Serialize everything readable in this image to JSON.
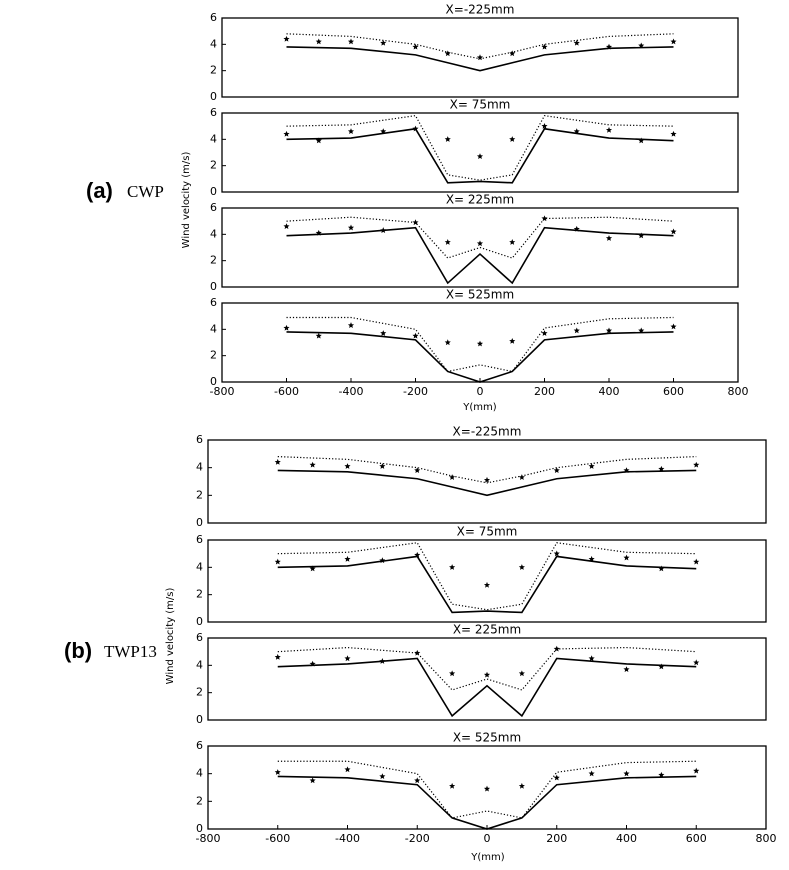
{
  "panels": [
    {
      "label": "(a)",
      "caption": "CWP",
      "ylabel": "Wind velocity (m/s)",
      "xlabel": "Y(mm)"
    },
    {
      "label": "(b)",
      "caption": "TWP13",
      "ylabel": "Wind velocity (m/s)",
      "xlabel": "Y(mm)"
    }
  ],
  "chart_data": [
    {
      "type": "line",
      "title": "X=-225mm",
      "xlim": [
        -800,
        800
      ],
      "ylim": [
        0,
        6
      ],
      "yticks": [
        0,
        2,
        4,
        6
      ],
      "color": "#000000",
      "series": [
        {
          "line": "solid",
          "x": [
            -600,
            -400,
            -200,
            -100,
            0,
            100,
            200,
            400,
            600
          ],
          "values": [
            3.8,
            3.7,
            3.2,
            2.6,
            2.0,
            2.6,
            3.2,
            3.7,
            3.8
          ]
        },
        {
          "line": "dotted",
          "x": [
            -600,
            -400,
            -200,
            -100,
            0,
            100,
            200,
            400,
            600
          ],
          "values": [
            4.8,
            4.6,
            4.0,
            3.4,
            2.9,
            3.4,
            4.0,
            4.6,
            4.8
          ]
        },
        {
          "line": "none",
          "marker": "star",
          "x": [
            -600,
            -500,
            -400,
            -300,
            -200,
            -100,
            0,
            100,
            200,
            300,
            400,
            500,
            600
          ],
          "values": [
            4.4,
            4.2,
            4.2,
            4.1,
            3.8,
            3.3,
            3.0,
            3.3,
            3.8,
            4.1,
            3.8,
            3.9,
            4.2
          ]
        }
      ]
    },
    {
      "type": "line",
      "title": "X=  75mm",
      "xlim": [
        -800,
        800
      ],
      "ylim": [
        0,
        6
      ],
      "yticks": [
        0,
        2,
        4,
        6
      ],
      "color": "#000000",
      "series": [
        {
          "line": "solid",
          "x": [
            -600,
            -400,
            -200,
            -100,
            0,
            100,
            200,
            400,
            600
          ],
          "values": [
            4.0,
            4.1,
            4.8,
            0.7,
            0.8,
            0.7,
            4.8,
            4.1,
            3.9
          ]
        },
        {
          "line": "dotted",
          "x": [
            -600,
            -400,
            -200,
            -100,
            0,
            100,
            200,
            400,
            600
          ],
          "values": [
            5.0,
            5.1,
            5.8,
            1.3,
            0.9,
            1.3,
            5.8,
            5.1,
            5.0
          ]
        },
        {
          "line": "none",
          "marker": "star",
          "x": [
            -600,
            -500,
            -400,
            -300,
            -200,
            -100,
            0,
            100,
            200,
            300,
            400,
            500,
            600
          ],
          "values": [
            4.4,
            3.9,
            4.6,
            4.6,
            4.8,
            4.0,
            2.7,
            4.0,
            5.0,
            4.6,
            4.7,
            3.9,
            4.4
          ]
        }
      ]
    },
    {
      "type": "line",
      "title": "X= 225mm",
      "xlim": [
        -800,
        800
      ],
      "ylim": [
        0,
        6
      ],
      "yticks": [
        0,
        2,
        4,
        6
      ],
      "color": "#000000",
      "series": [
        {
          "line": "solid",
          "x": [
            -600,
            -400,
            -200,
            -100,
            0,
            100,
            200,
            400,
            600
          ],
          "values": [
            3.9,
            4.1,
            4.5,
            0.3,
            2.5,
            0.3,
            4.5,
            4.1,
            3.9
          ]
        },
        {
          "line": "dotted",
          "x": [
            -600,
            -400,
            -200,
            -100,
            0,
            100,
            200,
            400,
            600
          ],
          "values": [
            5.0,
            5.3,
            4.9,
            2.2,
            3.0,
            2.2,
            5.2,
            5.3,
            5.0
          ]
        },
        {
          "line": "none",
          "marker": "star",
          "x": [
            -600,
            -500,
            -400,
            -300,
            -200,
            -100,
            0,
            100,
            200,
            300,
            400,
            500,
            600
          ],
          "values": [
            4.6,
            4.1,
            4.5,
            4.3,
            4.9,
            3.4,
            3.3,
            3.4,
            5.2,
            4.4,
            3.7,
            3.9,
            4.2
          ]
        }
      ]
    },
    {
      "type": "line",
      "title": "X= 525mm",
      "xlim": [
        -800,
        800
      ],
      "ylim": [
        0,
        6
      ],
      "yticks": [
        0,
        2,
        4,
        6
      ],
      "xticks": [
        -800,
        -600,
        -400,
        -200,
        0,
        200,
        400,
        600,
        800
      ],
      "color": "#000000",
      "series": [
        {
          "line": "solid",
          "x": [
            -600,
            -400,
            -200,
            -100,
            0,
            100,
            200,
            400,
            600
          ],
          "values": [
            3.8,
            3.7,
            3.2,
            0.8,
            0.0,
            0.8,
            3.2,
            3.7,
            3.8
          ]
        },
        {
          "line": "dotted",
          "x": [
            -600,
            -400,
            -200,
            -100,
            0,
            100,
            200,
            400,
            600
          ],
          "values": [
            4.9,
            4.9,
            4.0,
            0.8,
            1.3,
            0.8,
            4.1,
            4.8,
            4.9
          ]
        },
        {
          "line": "none",
          "marker": "star",
          "x": [
            -600,
            -500,
            -400,
            -300,
            -200,
            -100,
            0,
            100,
            200,
            300,
            400,
            500,
            600
          ],
          "values": [
            4.1,
            3.5,
            4.3,
            3.7,
            3.5,
            3.0,
            2.9,
            3.1,
            3.7,
            3.9,
            3.9,
            3.9,
            4.2
          ]
        }
      ]
    },
    {
      "type": "line",
      "title": "X=-225mm",
      "xlim": [
        -800,
        800
      ],
      "ylim": [
        0,
        6
      ],
      "yticks": [
        0,
        2,
        4,
        6
      ],
      "color": "#000000",
      "series": [
        {
          "line": "solid",
          "x": [
            -600,
            -400,
            -200,
            -100,
            0,
            100,
            200,
            400,
            600
          ],
          "values": [
            3.8,
            3.7,
            3.2,
            2.6,
            2.0,
            2.6,
            3.2,
            3.7,
            3.8
          ]
        },
        {
          "line": "dotted",
          "x": [
            -600,
            -400,
            -200,
            -100,
            0,
            100,
            200,
            400,
            600
          ],
          "values": [
            4.8,
            4.6,
            4.0,
            3.4,
            2.9,
            3.4,
            4.0,
            4.6,
            4.8
          ]
        },
        {
          "line": "none",
          "marker": "star",
          "x": [
            -600,
            -500,
            -400,
            -300,
            -200,
            -100,
            0,
            100,
            200,
            300,
            400,
            500,
            600
          ],
          "values": [
            4.4,
            4.2,
            4.1,
            4.1,
            3.8,
            3.3,
            3.1,
            3.3,
            3.8,
            4.1,
            3.8,
            3.9,
            4.2
          ]
        }
      ]
    },
    {
      "type": "line",
      "title": "X=  75mm",
      "xlim": [
        -800,
        800
      ],
      "ylim": [
        0,
        6
      ],
      "yticks": [
        0,
        2,
        4,
        6
      ],
      "color": "#000000",
      "series": [
        {
          "line": "solid",
          "x": [
            -600,
            -400,
            -200,
            -100,
            0,
            100,
            200,
            400,
            600
          ],
          "values": [
            4.0,
            4.1,
            4.8,
            0.7,
            0.8,
            0.7,
            4.8,
            4.1,
            3.9
          ]
        },
        {
          "line": "dotted",
          "x": [
            -600,
            -400,
            -200,
            -100,
            0,
            100,
            200,
            400,
            600
          ],
          "values": [
            5.0,
            5.1,
            5.8,
            1.3,
            0.9,
            1.3,
            5.8,
            5.1,
            5.0
          ]
        },
        {
          "line": "none",
          "marker": "star",
          "x": [
            -600,
            -500,
            -400,
            -300,
            -200,
            -100,
            0,
            100,
            200,
            300,
            400,
            500,
            600
          ],
          "values": [
            4.4,
            3.9,
            4.6,
            4.5,
            4.9,
            4.0,
            2.7,
            4.0,
            5.0,
            4.6,
            4.7,
            3.9,
            4.4
          ]
        }
      ]
    },
    {
      "type": "line",
      "title": "X= 225mm",
      "xlim": [
        -800,
        800
      ],
      "ylim": [
        0,
        6
      ],
      "yticks": [
        0,
        2,
        4,
        6
      ],
      "color": "#000000",
      "series": [
        {
          "line": "solid",
          "x": [
            -600,
            -400,
            -200,
            -100,
            0,
            100,
            200,
            400,
            600
          ],
          "values": [
            3.9,
            4.1,
            4.5,
            0.3,
            2.5,
            0.3,
            4.5,
            4.1,
            3.9
          ]
        },
        {
          "line": "dotted",
          "x": [
            -600,
            -400,
            -200,
            -100,
            0,
            100,
            200,
            400,
            600
          ],
          "values": [
            5.0,
            5.3,
            4.9,
            2.2,
            3.0,
            2.2,
            5.2,
            5.3,
            5.0
          ]
        },
        {
          "line": "none",
          "marker": "star",
          "x": [
            -600,
            -500,
            -400,
            -300,
            -200,
            -100,
            0,
            100,
            200,
            300,
            400,
            500,
            600
          ],
          "values": [
            4.6,
            4.1,
            4.5,
            4.3,
            4.9,
            3.4,
            3.3,
            3.4,
            5.2,
            4.5,
            3.7,
            3.9,
            4.2
          ]
        }
      ]
    },
    {
      "type": "line",
      "title": "X= 525mm",
      "xlim": [
        -800,
        800
      ],
      "ylim": [
        0,
        6
      ],
      "yticks": [
        0,
        2,
        4,
        6
      ],
      "xticks": [
        -800,
        -600,
        -400,
        -200,
        0,
        200,
        400,
        600,
        800
      ],
      "color": "#000000",
      "series": [
        {
          "line": "solid",
          "x": [
            -600,
            -400,
            -200,
            -100,
            0,
            100,
            200,
            400,
            600
          ],
          "values": [
            3.8,
            3.7,
            3.2,
            0.8,
            0.0,
            0.8,
            3.2,
            3.7,
            3.8
          ]
        },
        {
          "line": "dotted",
          "x": [
            -600,
            -400,
            -200,
            -100,
            0,
            100,
            200,
            400,
            600
          ],
          "values": [
            4.9,
            4.9,
            4.0,
            0.8,
            1.3,
            0.8,
            4.1,
            4.8,
            4.9
          ]
        },
        {
          "line": "none",
          "marker": "star",
          "x": [
            -600,
            -500,
            -400,
            -300,
            -200,
            -100,
            0,
            100,
            200,
            300,
            400,
            500,
            600
          ],
          "values": [
            4.1,
            3.5,
            4.3,
            3.8,
            3.5,
            3.1,
            2.9,
            3.1,
            3.7,
            4.0,
            4.0,
            3.9,
            4.2
          ]
        }
      ]
    }
  ]
}
